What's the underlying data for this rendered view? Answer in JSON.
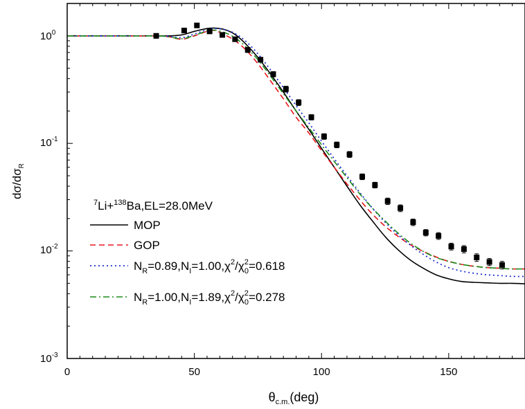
{
  "chart_data": {
    "type": "line",
    "xlim": [
      0,
      180
    ],
    "ylim": [
      0.001,
      2
    ],
    "yscale": "log",
    "x_ticks": [
      "0",
      "50",
      "100",
      "150"
    ],
    "y_ticks": [
      {
        "base": "10",
        "exp": "0"
      },
      {
        "base": "10",
        "exp": "-1"
      },
      {
        "base": "10",
        "exp": "-2"
      },
      {
        "base": "10",
        "exp": "-3"
      }
    ],
    "xlabel": {
      "main": "θ",
      "sub": "c.m.",
      "unit": "(deg)"
    },
    "ylabel": {
      "a": "dσ/dσ",
      "sub": "R"
    },
    "legend": {
      "title": {
        "sup1": "7",
        "p1": "Li+",
        "sup2": "138",
        "p2": "Ba,EL=28.0MeV"
      },
      "entries": [
        {
          "text": "MOP"
        },
        {
          "text": "GOP"
        },
        {
          "text": "N_R=0.89,N_I=1.00,χ²/χ₀²=0.618",
          "parts": [
            "N",
            "R",
            "=0.89,N",
            "I",
            "=1.00,χ",
            "2",
            "/χ",
            "2",
            "0",
            "=0.618"
          ]
        },
        {
          "text": "N_R=1.00,N_I=1.89,χ²/χ₀²=0.278",
          "parts": [
            "N",
            "R",
            "=1.00,N",
            "I",
            "=1.89,χ",
            "2",
            "/χ",
            "2",
            "0",
            "=0.278"
          ]
        }
      ]
    },
    "series": [
      {
        "style": "solid",
        "color": "#000000",
        "x": [
          0,
          10,
          20,
          30,
          35,
          40,
          45,
          50,
          55,
          58,
          62,
          66,
          70,
          75,
          80,
          85,
          90,
          95,
          100,
          105,
          110,
          115,
          120,
          125,
          130,
          135,
          140,
          145,
          150,
          155,
          160,
          165,
          170,
          175,
          180
        ],
        "y": [
          1.0,
          1.0,
          1.0,
          1.0,
          1.0,
          1.0,
          1.02,
          1.1,
          1.17,
          1.18,
          1.14,
          1.03,
          0.85,
          0.63,
          0.44,
          0.3,
          0.2,
          0.135,
          0.09,
          0.06,
          0.04,
          0.027,
          0.019,
          0.0136,
          0.0103,
          0.0082,
          0.0069,
          0.006,
          0.0055,
          0.0052,
          0.0051,
          0.00505,
          0.005,
          0.005,
          0.00495
        ]
      },
      {
        "style": "dash",
        "color": "#e8141e",
        "x": [
          0,
          10,
          20,
          30,
          35,
          40,
          45,
          50,
          55,
          58,
          62,
          66,
          70,
          75,
          80,
          85,
          90,
          95,
          100,
          105,
          110,
          115,
          120,
          125,
          130,
          135,
          140,
          145,
          150,
          155,
          160,
          165,
          170,
          175,
          180
        ],
        "y": [
          1.0,
          1.0,
          1.0,
          1.0,
          1.0,
          0.98,
          0.93,
          1.0,
          1.1,
          1.12,
          1.02,
          0.9,
          0.75,
          0.55,
          0.38,
          0.26,
          0.175,
          0.125,
          0.086,
          0.06,
          0.042,
          0.03,
          0.022,
          0.017,
          0.0137,
          0.0114,
          0.0099,
          0.0088,
          0.008,
          0.0075,
          0.0072,
          0.007,
          0.0069,
          0.0068,
          0.0068
        ]
      },
      {
        "style": "dot",
        "color": "#1f2ccf",
        "x": [
          0,
          10,
          20,
          30,
          35,
          40,
          45,
          50,
          55,
          58,
          62,
          66,
          70,
          75,
          80,
          85,
          90,
          95,
          100,
          105,
          110,
          115,
          120,
          125,
          130,
          135,
          140,
          145,
          150,
          155,
          160,
          165,
          170,
          175,
          180
        ],
        "y": [
          1.0,
          1.0,
          1.0,
          1.0,
          1.0,
          0.99,
          0.96,
          1.04,
          1.14,
          1.17,
          1.14,
          1.05,
          0.9,
          0.68,
          0.48,
          0.33,
          0.225,
          0.155,
          0.105,
          0.072,
          0.05,
          0.035,
          0.025,
          0.0185,
          0.0142,
          0.0113,
          0.0093,
          0.0079,
          0.007,
          0.0065,
          0.0062,
          0.006,
          0.0059,
          0.0058,
          0.0058
        ]
      },
      {
        "style": "dashdot",
        "color": "#1b8a1b",
        "x": [
          0,
          10,
          20,
          30,
          35,
          40,
          45,
          50,
          55,
          58,
          62,
          66,
          70,
          75,
          80,
          85,
          90,
          95,
          100,
          105,
          110,
          115,
          120,
          125,
          130,
          135,
          140,
          145,
          150,
          155,
          160,
          165,
          170,
          175,
          180
        ],
        "y": [
          1.0,
          1.0,
          1.0,
          1.0,
          1.0,
          0.98,
          0.94,
          1.01,
          1.11,
          1.13,
          1.07,
          0.96,
          0.8,
          0.6,
          0.42,
          0.29,
          0.2,
          0.14,
          0.097,
          0.068,
          0.048,
          0.034,
          0.025,
          0.019,
          0.0147,
          0.0118,
          0.0099,
          0.0087,
          0.008,
          0.0075,
          0.0072,
          0.007,
          0.0069,
          0.0068,
          0.0068
        ]
      }
    ],
    "points": {
      "x": [
        35,
        46,
        51,
        56,
        61,
        66,
        71,
        76,
        81,
        86,
        91,
        96,
        101,
        106,
        111,
        116,
        121,
        126,
        131,
        136,
        141,
        146,
        151,
        156,
        161,
        166,
        171
      ],
      "y": [
        1.0,
        1.12,
        1.25,
        1.1,
        1.02,
        0.93,
        0.74,
        0.6,
        0.44,
        0.32,
        0.24,
        0.175,
        0.116,
        0.097,
        0.079,
        0.049,
        0.041,
        0.029,
        0.025,
        0.0185,
        0.0148,
        0.0138,
        0.011,
        0.0104,
        0.0087,
        0.0079,
        0.0074
      ],
      "err": [
        0.05,
        0.05,
        0.06,
        0.05,
        0.05,
        0.04,
        0.04,
        0.03,
        0.025,
        0.02,
        0.015,
        0.01,
        0.007,
        0.006,
        0.005,
        0.003,
        0.0025,
        0.002,
        0.0018,
        0.0013,
        0.001,
        0.001,
        0.0008,
        0.0008,
        0.0007,
        0.0006,
        0.0006
      ]
    }
  }
}
